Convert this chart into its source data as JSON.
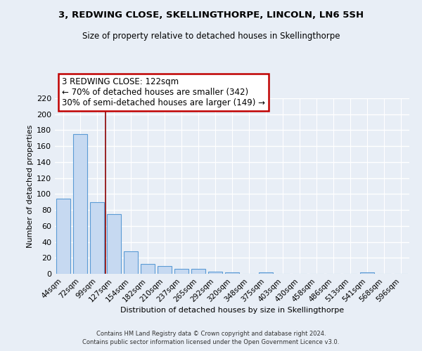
{
  "title": "3, REDWING CLOSE, SKELLINGTHORPE, LINCOLN, LN6 5SH",
  "subtitle": "Size of property relative to detached houses in Skellingthorpe",
  "xlabel": "Distribution of detached houses by size in Skellingthorpe",
  "ylabel": "Number of detached properties",
  "bar_labels": [
    "44sqm",
    "72sqm",
    "99sqm",
    "127sqm",
    "154sqm",
    "182sqm",
    "210sqm",
    "237sqm",
    "265sqm",
    "292sqm",
    "320sqm",
    "348sqm",
    "375sqm",
    "403sqm",
    "430sqm",
    "458sqm",
    "486sqm",
    "513sqm",
    "541sqm",
    "568sqm",
    "596sqm"
  ],
  "bar_values": [
    94,
    175,
    90,
    75,
    28,
    12,
    10,
    6,
    6,
    3,
    2,
    0,
    2,
    0,
    0,
    0,
    0,
    0,
    2,
    0,
    0
  ],
  "bar_color": "#c6d9f1",
  "bar_edge_color": "#5b9bd5",
  "vline_color": "#8b0000",
  "annotation_line1": "3 REDWING CLOSE: 122sqm",
  "annotation_line2": "← 70% of detached houses are smaller (342)",
  "annotation_line3": "30% of semi-detached houses are larger (149) →",
  "annotation_box_color": "#c00000",
  "ylim": [
    0,
    220
  ],
  "yticks": [
    0,
    20,
    40,
    60,
    80,
    100,
    120,
    140,
    160,
    180,
    200,
    220
  ],
  "background_color": "#e8eef6",
  "grid_color": "#ffffff",
  "footer_line1": "Contains HM Land Registry data © Crown copyright and database right 2024.",
  "footer_line2": "Contains public sector information licensed under the Open Government Licence v3.0."
}
